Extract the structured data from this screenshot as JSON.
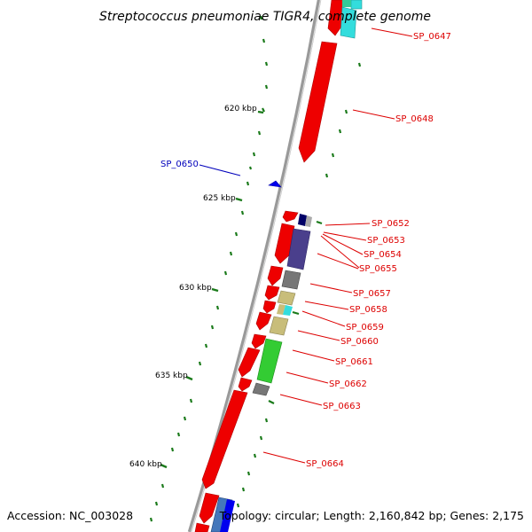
{
  "title": "Streptococcus pneumoniae TIGR4, complete genome",
  "footer": {
    "accession": "Accession: NC_003028",
    "stats": "Topology: circular; Length: 2,160,842 bp; Genes: 2,175"
  },
  "scale_labels": [
    "620 kbp",
    "625 kbp",
    "630 kbp",
    "635 kbp",
    "640 kbp"
  ],
  "genes": [
    {
      "label": "SP_0647",
      "strand": "forward",
      "color": "#dd0000"
    },
    {
      "label": "SP_0648",
      "strand": "forward",
      "color": "#dd0000"
    },
    {
      "label": "SP_0650",
      "strand": "reverse",
      "color": "#0000bb"
    },
    {
      "label": "SP_0652",
      "strand": "forward",
      "color": "#dd0000"
    },
    {
      "label": "SP_0653",
      "strand": "forward",
      "color": "#dd0000"
    },
    {
      "label": "SP_0654",
      "strand": "forward",
      "color": "#dd0000"
    },
    {
      "label": "SP_0655",
      "strand": "forward",
      "color": "#dd0000"
    },
    {
      "label": "SP_0657",
      "strand": "forward",
      "color": "#dd0000"
    },
    {
      "label": "SP_0658",
      "strand": "forward",
      "color": "#dd0000"
    },
    {
      "label": "SP_0659",
      "strand": "forward",
      "color": "#dd0000"
    },
    {
      "label": "SP_0660",
      "strand": "forward",
      "color": "#dd0000"
    },
    {
      "label": "SP_0661",
      "strand": "forward",
      "color": "#dd0000"
    },
    {
      "label": "SP_0662",
      "strand": "forward",
      "color": "#dd0000"
    },
    {
      "label": "SP_0663",
      "strand": "forward",
      "color": "#dd0000"
    },
    {
      "label": "SP_0664",
      "strand": "forward",
      "color": "#dd0000"
    }
  ],
  "colors": {
    "forward_gene": "#ee0000",
    "reverse_gene": "#0000ee",
    "backbone": "#888888",
    "tick": "#1a7a1a",
    "cog_navy": "#000066",
    "cog_purple": "#4a3f8c",
    "cog_grey": "#888888",
    "cog_khaki": "#c8bd7a",
    "cog_cyan": "#33dddd",
    "cog_green": "#33cc33",
    "cog_steel": "#4477bb"
  }
}
